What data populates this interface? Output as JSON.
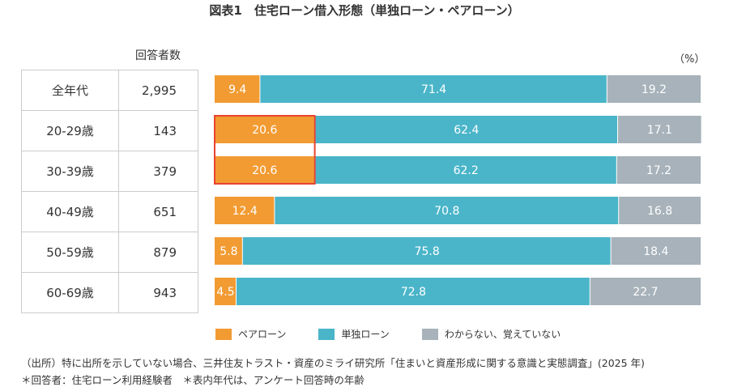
{
  "chart_data": {
    "type": "bar",
    "stacked": true,
    "orientation": "horizontal",
    "title": "図表1　住宅ローン借入形態（単独ローン・ペアローン）",
    "unit": "（%）",
    "table_header": "回答者数",
    "categories": [
      "全年代",
      "20-29歳",
      "30-39歳",
      "40-49歳",
      "50-59歳",
      "60-69歳"
    ],
    "respondents": [
      "2,995",
      "143",
      "379",
      "651",
      "879",
      "943"
    ],
    "series": [
      {
        "name": "ペアローン",
        "color": "#f29b32",
        "values": [
          9.4,
          20.6,
          20.6,
          12.4,
          5.8,
          4.5
        ]
      },
      {
        "name": "単独ローン",
        "color": "#4ab5c9",
        "values": [
          71.4,
          62.4,
          62.2,
          70.8,
          75.8,
          72.8
        ]
      },
      {
        "name": "わからない、覚えていない",
        "color": "#a7b2ba",
        "values": [
          19.2,
          17.1,
          17.2,
          16.8,
          18.4,
          22.7
        ]
      }
    ],
    "xlim": [
      0,
      100
    ],
    "highlight": {
      "series": "ペアローン",
      "categories": [
        "20-29歳",
        "30-39歳"
      ],
      "color": "#e8432e"
    }
  },
  "notes": [
    "（出所）特に出所を示していない場合、三井住友トラスト・資産のミライ研究所「住まいと資産形成に関する意識と実態調査」(2025 年)",
    "＊回答者：住宅ローン利用経験者　＊表内年代は、アンケート回答時の年齢"
  ]
}
